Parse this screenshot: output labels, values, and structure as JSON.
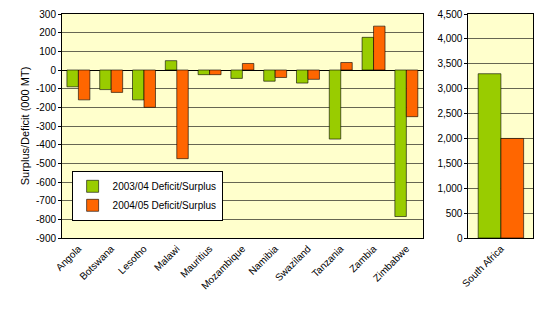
{
  "chart_data": [
    {
      "type": "bar",
      "y_label": "Surplus/Deficit (000 MT)",
      "categories": [
        "Angola",
        "Botswana",
        "Lesotho",
        "Malawi",
        "Mauritius",
        "Mozambique",
        "Namibia",
        "Swaziland",
        "Tanzania",
        "Zambia",
        "Zimbabwe"
      ],
      "series": [
        {
          "name": "2003/04 Deficit/Surplus",
          "color": "#99cc00",
          "values": [
            -90,
            -105,
            -160,
            50,
            -25,
            -45,
            -60,
            -70,
            -370,
            175,
            -785
          ]
        },
        {
          "name": "2004/05 Deficit/Surplus",
          "color": "#ff6600",
          "values": [
            -160,
            -120,
            -200,
            -475,
            -25,
            35,
            -40,
            -50,
            40,
            235,
            -250
          ]
        }
      ],
      "ylim": [
        -900,
        300
      ],
      "yticks": [
        -900,
        -800,
        -700,
        -600,
        -500,
        -400,
        -300,
        -200,
        -100,
        0,
        100,
        200,
        300
      ],
      "grid": true,
      "legend": "lower left"
    },
    {
      "type": "bar",
      "categories": [
        "South Africa"
      ],
      "series": [
        {
          "color": "#99cc00",
          "values": [
            3300
          ]
        },
        {
          "color": "#ff6600",
          "values": [
            2000
          ]
        }
      ],
      "ylim": [
        0,
        4500
      ],
      "yticks": [
        0,
        500,
        {
          "value": 1000,
          "label": "1,000"
        },
        {
          "value": 1500,
          "label": "1,500"
        },
        {
          "value": 2000,
          "label": "2,000"
        },
        {
          "value": 2500,
          "label": "2,500"
        },
        {
          "value": 3000,
          "label": "3,000"
        },
        {
          "value": 3500,
          "label": "3,500"
        },
        {
          "value": 4000,
          "label": "4,000"
        },
        {
          "value": 4500,
          "label": "4,500"
        }
      ],
      "grid": true
    }
  ]
}
